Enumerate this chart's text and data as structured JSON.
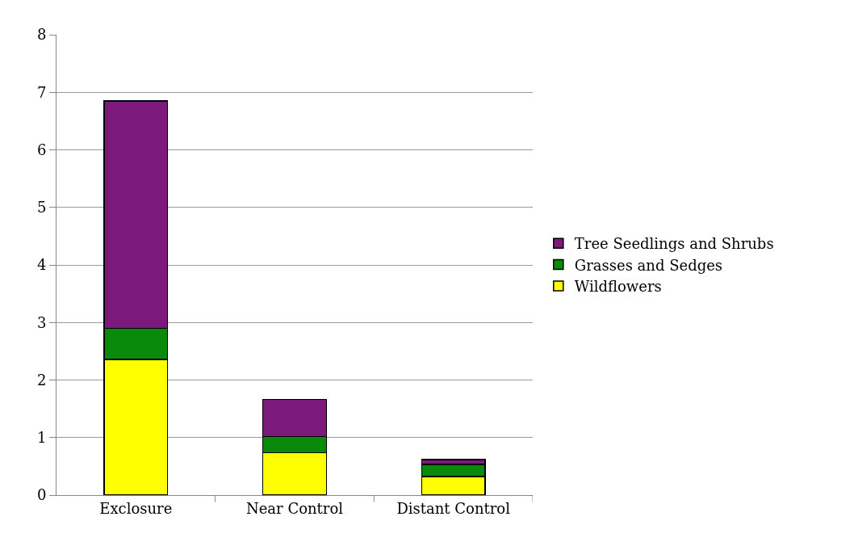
{
  "chart_data": {
    "type": "bar",
    "stacked": true,
    "categories": [
      "Exclosure",
      "Near Control",
      "Distant Control"
    ],
    "series": [
      {
        "name": "Wildflowers",
        "color": "#ffff00",
        "values": [
          2.36,
          0.74,
          0.32
        ]
      },
      {
        "name": "Grasses and Sedges",
        "color": "#0a8a0a",
        "values": [
          0.54,
          0.28,
          0.21
        ]
      },
      {
        "name": "Tree Seedlings and Shrubs",
        "color": "#7b1a7b",
        "values": [
          3.95,
          0.64,
          0.09
        ]
      }
    ],
    "ylim": [
      0,
      8
    ],
    "yticks": [
      0,
      1,
      2,
      3,
      4,
      5,
      6,
      7,
      8
    ],
    "grid": "y",
    "legend": "right"
  }
}
